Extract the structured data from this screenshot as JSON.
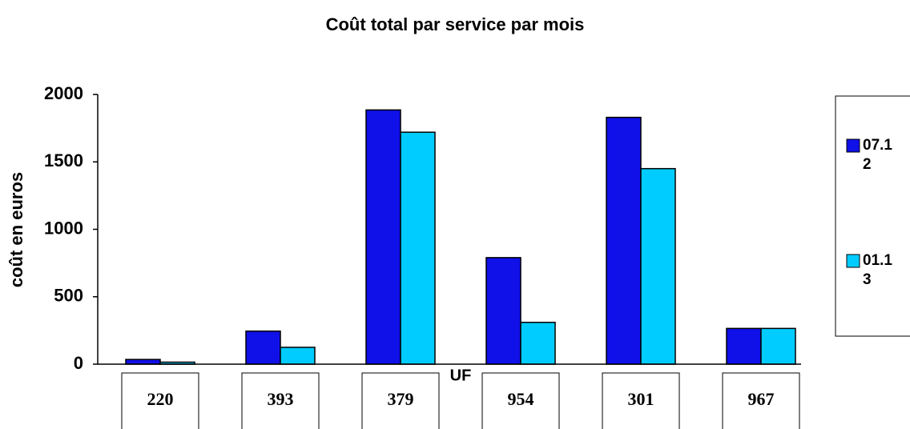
{
  "chart_data": {
    "type": "bar",
    "title": "Coût total par service par mois",
    "xlabel": "UF",
    "ylabel": "coût en euros",
    "categories": [
      "220",
      "393",
      "379",
      "954",
      "301",
      "967"
    ],
    "series": [
      {
        "name": "07.12",
        "color": "#1010e8",
        "values": [
          35,
          245,
          1885,
          790,
          1830,
          265
        ]
      },
      {
        "name": "01.13",
        "color": "#00ccff",
        "values": [
          15,
          125,
          1720,
          310,
          1450,
          265
        ]
      }
    ],
    "ylim": [
      0,
      2000
    ],
    "yticks": [
      0,
      500,
      1000,
      1500,
      2000
    ],
    "legend": "right"
  }
}
